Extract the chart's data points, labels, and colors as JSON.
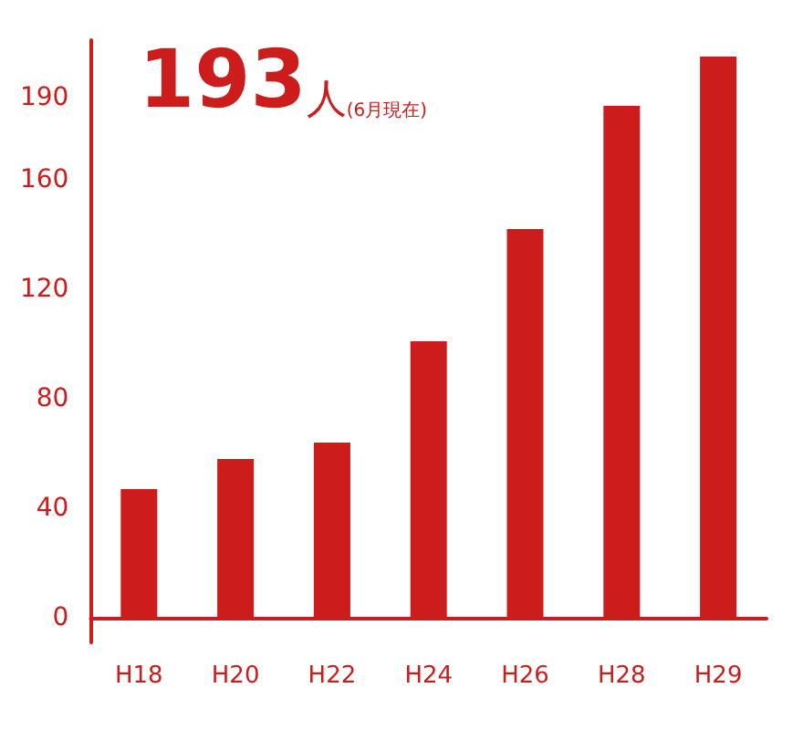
{
  "chart_data": {
    "type": "bar",
    "categories": [
      "H18",
      "H20",
      "H22",
      "H24",
      "H26",
      "H28",
      "H29"
    ],
    "values": [
      47,
      58,
      64,
      101,
      142,
      187,
      205
    ],
    "color": "#cc1c1c",
    "ylim": [
      -9,
      211
    ],
    "yticks": [
      0,
      40,
      80,
      120,
      160,
      190
    ],
    "grid": false,
    "annotations": [
      "193",
      "人",
      "(6月現在)"
    ]
  }
}
